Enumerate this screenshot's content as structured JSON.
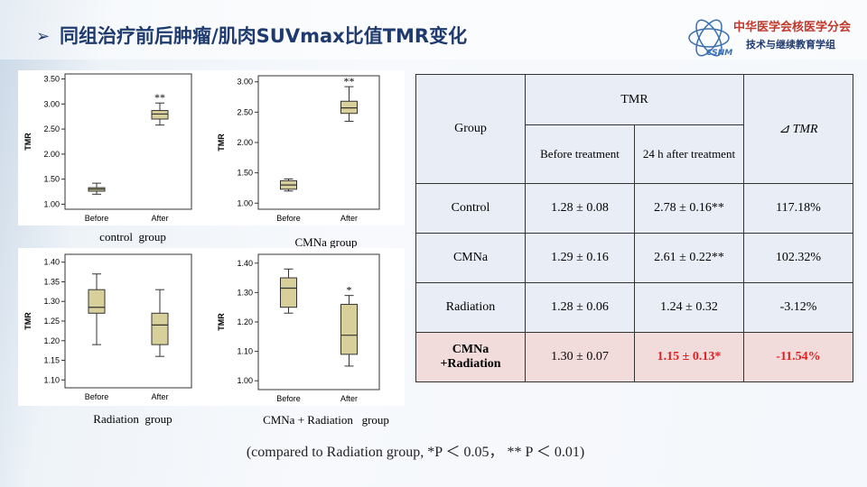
{
  "header": {
    "title": "同组治疗前后肿瘤/肌肉SUVmax比值TMR变化",
    "logo_line1": "中华医学会核医学分会",
    "logo_line2": "技术与继续教育学组",
    "logo_mark": "CSNM"
  },
  "chart_data": [
    {
      "type": "box",
      "title": "control  group",
      "ylabel": "TMR",
      "categories": [
        "Before",
        "After"
      ],
      "color": "#d8d09a",
      "ylim": [
        0.9,
        3.6
      ],
      "yticks": [
        {
          "value": 1,
          "label": "1.00"
        },
        {
          "value": 1.5,
          "label": "1.50"
        },
        {
          "value": 2,
          "label": "2.00"
        },
        {
          "value": 2.5,
          "label": "2.50"
        },
        {
          "value": 3,
          "label": "3.00"
        },
        {
          "value": 3.5,
          "label": "3.50"
        }
      ],
      "boxes": [
        {
          "min": 1.2,
          "q1": 1.26,
          "median": 1.3,
          "q3": 1.33,
          "max": 1.42
        },
        {
          "min": 2.58,
          "q1": 2.7,
          "median": 2.8,
          "q3": 2.87,
          "max": 3.02
        }
      ],
      "annotations": [
        null,
        "**"
      ]
    },
    {
      "type": "box",
      "title": "CMNa group",
      "ylabel": "TMR",
      "categories": [
        "Before",
        "After"
      ],
      "color": "#d8d09a",
      "ylim": [
        0.9,
        3.1
      ],
      "yticks": [
        {
          "value": 1,
          "label": "1.00"
        },
        {
          "value": 1.5,
          "label": "1.50"
        },
        {
          "value": 2,
          "label": "2.00"
        },
        {
          "value": 2.5,
          "label": "2.50"
        },
        {
          "value": 3,
          "label": "3.00"
        }
      ],
      "boxes": [
        {
          "min": 1.2,
          "q1": 1.23,
          "median": 1.3,
          "q3": 1.37,
          "max": 1.4
        },
        {
          "min": 2.35,
          "q1": 2.48,
          "median": 2.57,
          "q3": 2.68,
          "max": 2.92
        }
      ],
      "annotations": [
        null,
        "**"
      ]
    },
    {
      "type": "box",
      "title": "Radiation  group",
      "ylabel": "TMR",
      "categories": [
        "Before",
        "After"
      ],
      "color": "#d8d09a",
      "ylim": [
        1.08,
        1.42
      ],
      "yticks": [
        {
          "value": 1.1,
          "label": "1.10"
        },
        {
          "value": 1.15,
          "label": "1.15"
        },
        {
          "value": 1.2,
          "label": "1.20"
        },
        {
          "value": 1.25,
          "label": "1.25"
        },
        {
          "value": 1.3,
          "label": "1.30"
        },
        {
          "value": 1.35,
          "label": "1.35"
        },
        {
          "value": 1.4,
          "label": "1.40"
        }
      ],
      "boxes": [
        {
          "min": 1.19,
          "q1": 1.27,
          "median": 1.285,
          "q3": 1.33,
          "max": 1.37
        },
        {
          "min": 1.16,
          "q1": 1.19,
          "median": 1.24,
          "q3": 1.27,
          "max": 1.33
        }
      ]
    },
    {
      "type": "box",
      "title": "CMNa + Radiation   group",
      "ylabel": "TMR",
      "categories": [
        "Before",
        "After"
      ],
      "color": "#d8d09a",
      "ylim": [
        0.97,
        1.43
      ],
      "yticks": [
        {
          "value": 1,
          "label": "1.00"
        },
        {
          "value": 1.1,
          "label": "1.10"
        },
        {
          "value": 1.2,
          "label": "1.20"
        },
        {
          "value": 1.3,
          "label": "1.30"
        },
        {
          "value": 1.4,
          "label": "1.40"
        }
      ],
      "boxes": [
        {
          "min": 1.23,
          "q1": 1.25,
          "median": 1.315,
          "q3": 1.35,
          "max": 1.38
        },
        {
          "min": 1.05,
          "q1": 1.09,
          "median": 1.155,
          "q3": 1.26,
          "max": 1.29
        }
      ],
      "annotations": [
        null,
        "*"
      ]
    }
  ],
  "table": {
    "headers": {
      "group": "Group",
      "tmr": "TMR",
      "before": "Before treatment",
      "after": "24 h after treatment",
      "delta": "⊿ TMR"
    },
    "rows": [
      [
        "Control",
        "1.28 ± 0.08",
        "2.78 ± 0.16**",
        "117.18%"
      ],
      [
        "CMNa",
        "1.29 ± 0.16",
        "2.61 ± 0.22**",
        "102.32%"
      ],
      [
        "Radiation",
        "1.28 ± 0.06",
        "1.24 ± 0.32",
        "-3.12%"
      ],
      [
        "CMNa +Radiation",
        "1.30 ± 0.07",
        "1.15 ± 0.13*",
        "-11.54%"
      ]
    ],
    "highlight_row": 3
  },
  "footnote": "(compared to Radiation group, *P ＜ 0.05， ** P ＜ 0.01)"
}
